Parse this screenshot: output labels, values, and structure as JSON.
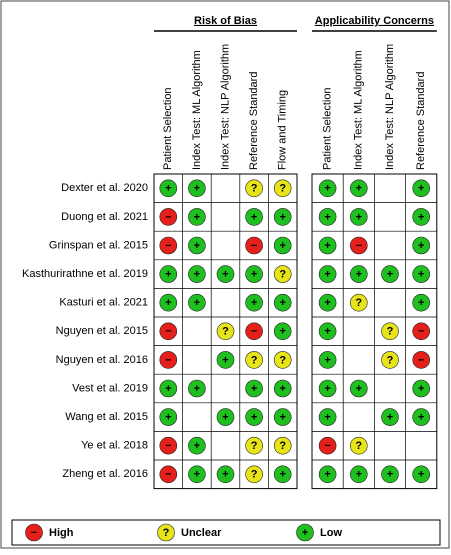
{
  "groups": [
    {
      "title": "Risk of Bias",
      "columns": [
        "Patient Selection",
        "Index Test: ML Algorithm",
        "Index Test: NLP Algorithm",
        "Reference Standard",
        "Flow and Timing"
      ]
    },
    {
      "title": "Applicability Concerns",
      "columns": [
        "Patient Selection",
        "Index Test: ML Algorithm",
        "Index Test: NLP Algorithm",
        "Reference Standard"
      ]
    }
  ],
  "rows": [
    {
      "label": "Dexter et al. 2020",
      "cells": [
        [
          "+",
          "+",
          null,
          "?",
          "?"
        ],
        [
          "+",
          "+",
          null,
          "+"
        ]
      ]
    },
    {
      "label": "Duong et al. 2021",
      "cells": [
        [
          "−",
          "+",
          null,
          "+",
          "+"
        ],
        [
          "+",
          "+",
          null,
          "+"
        ]
      ]
    },
    {
      "label": "Grinspan et al. 2015",
      "cells": [
        [
          "−",
          "+",
          null,
          "−",
          "+"
        ],
        [
          "+",
          "−",
          null,
          "+"
        ]
      ]
    },
    {
      "label": "Kasthurirathne et al. 2019",
      "cells": [
        [
          "+",
          "+",
          "+",
          "+",
          "?"
        ],
        [
          "+",
          "+",
          "+",
          "+"
        ]
      ]
    },
    {
      "label": "Kasturi et al. 2021",
      "cells": [
        [
          "+",
          "+",
          null,
          "+",
          "+"
        ],
        [
          "+",
          "?",
          null,
          "+"
        ]
      ]
    },
    {
      "label": "Nguyen et al. 2015",
      "cells": [
        [
          "−",
          null,
          "?",
          "−",
          "+"
        ],
        [
          "+",
          null,
          "?",
          "−"
        ]
      ]
    },
    {
      "label": "Nguyen et al. 2016",
      "cells": [
        [
          "−",
          null,
          "+",
          "?",
          "?"
        ],
        [
          "+",
          null,
          "?",
          "−"
        ]
      ]
    },
    {
      "label": "Vest et al. 2019",
      "cells": [
        [
          "+",
          "+",
          null,
          "+",
          "+"
        ],
        [
          "+",
          "+",
          null,
          "+"
        ]
      ]
    },
    {
      "label": "Wang et al. 2015",
      "cells": [
        [
          "+",
          null,
          "+",
          "+",
          "+"
        ],
        [
          "+",
          null,
          "+",
          "+"
        ]
      ]
    },
    {
      "label": "Ye et al. 2018",
      "cells": [
        [
          "−",
          "+",
          null,
          "?",
          "?"
        ],
        [
          "−",
          "?",
          null,
          null
        ]
      ]
    },
    {
      "label": "Zheng et al. 2016",
      "cells": [
        [
          "−",
          "+",
          "+",
          "?",
          "+"
        ],
        [
          "+",
          "+",
          "+",
          "+"
        ]
      ]
    }
  ],
  "legend": [
    {
      "symbol": "−",
      "label": "High",
      "color": "#e5201b"
    },
    {
      "symbol": "?",
      "label": "Unclear",
      "color": "#e8e41a"
    },
    {
      "symbol": "+",
      "label": "Low",
      "color": "#1fbf1f"
    }
  ]
}
